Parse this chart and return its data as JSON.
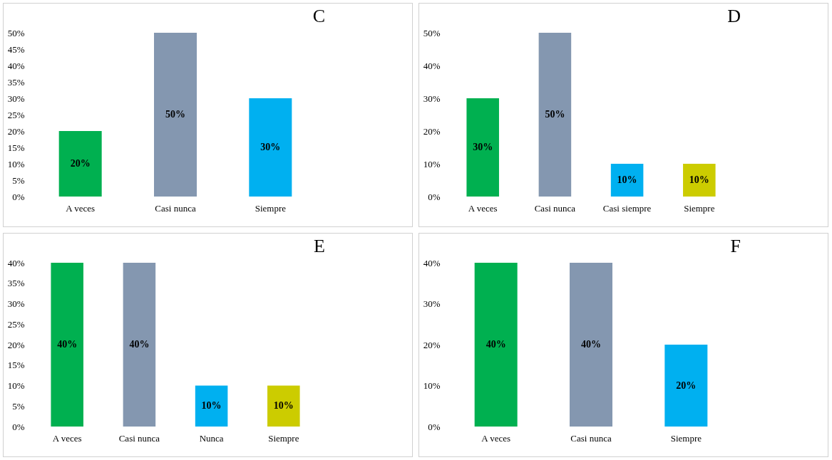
{
  "chart_data": [
    {
      "type": "bar",
      "title": "C",
      "categories": [
        "A veces",
        "Casi nunca",
        "Siempre"
      ],
      "values": [
        20,
        50,
        30
      ],
      "colors": [
        "#00b050",
        "#8497b0",
        "#00b0f0"
      ],
      "value_labels": [
        "20%",
        "50%",
        "30%"
      ],
      "ylim": [
        0,
        50
      ],
      "yticks": [
        {
          "value": 0,
          "label": "0%"
        },
        {
          "value": 5,
          "label": "5%"
        },
        {
          "value": 10,
          "label": "10%"
        },
        {
          "value": 15,
          "label": "15%"
        },
        {
          "value": 20,
          "label": "20%"
        },
        {
          "value": 25,
          "label": "25%"
        },
        {
          "value": 30,
          "label": "30%"
        },
        {
          "value": 35,
          "label": "35%"
        },
        {
          "value": 40,
          "label": "40%"
        },
        {
          "value": 45,
          "label": "45%"
        },
        {
          "value": 50,
          "label": "50%"
        }
      ],
      "grid": false,
      "legend": false
    },
    {
      "type": "bar",
      "title": "D",
      "categories": [
        "A veces",
        "Casi nunca",
        "Casi siempre",
        "Siempre"
      ],
      "values": [
        30,
        50,
        10,
        10
      ],
      "colors": [
        "#00b050",
        "#8497b0",
        "#00b0f0",
        "#cccc00"
      ],
      "value_labels": [
        "30%",
        "50%",
        "10%",
        "10%"
      ],
      "ylim": [
        0,
        50
      ],
      "yticks": [
        {
          "value": 0,
          "label": "0%"
        },
        {
          "value": 10,
          "label": "10%"
        },
        {
          "value": 20,
          "label": "20%"
        },
        {
          "value": 30,
          "label": "30%"
        },
        {
          "value": 40,
          "label": "40%"
        },
        {
          "value": 50,
          "label": "50%"
        }
      ],
      "grid": false,
      "legend": false
    },
    {
      "type": "bar",
      "title": "E",
      "categories": [
        "A veces",
        "Casi nunca",
        "Nunca",
        "Siempre"
      ],
      "values": [
        40,
        40,
        10,
        10
      ],
      "colors": [
        "#00b050",
        "#8497b0",
        "#00b0f0",
        "#cccc00"
      ],
      "value_labels": [
        "40%",
        "40%",
        "10%",
        "10%"
      ],
      "ylim": [
        0,
        40
      ],
      "yticks": [
        {
          "value": 0,
          "label": "0%"
        },
        {
          "value": 5,
          "label": "5%"
        },
        {
          "value": 10,
          "label": "10%"
        },
        {
          "value": 15,
          "label": "15%"
        },
        {
          "value": 20,
          "label": "20%"
        },
        {
          "value": 25,
          "label": "25%"
        },
        {
          "value": 30,
          "label": "30%"
        },
        {
          "value": 35,
          "label": "35%"
        },
        {
          "value": 40,
          "label": "40%"
        }
      ],
      "grid": false,
      "legend": false
    },
    {
      "type": "bar",
      "title": "F",
      "categories": [
        "A veces",
        "Casi nunca",
        "Siempre"
      ],
      "values": [
        40,
        40,
        20
      ],
      "colors": [
        "#00b050",
        "#8497b0",
        "#00b0f0"
      ],
      "value_labels": [
        "40%",
        "40%",
        "20%"
      ],
      "ylim": [
        0,
        40
      ],
      "yticks": [
        {
          "value": 0,
          "label": "0%"
        },
        {
          "value": 10,
          "label": "10%"
        },
        {
          "value": 20,
          "label": "20%"
        },
        {
          "value": 30,
          "label": "30%"
        },
        {
          "value": 40,
          "label": "40%"
        }
      ],
      "grid": false,
      "legend": false
    }
  ]
}
